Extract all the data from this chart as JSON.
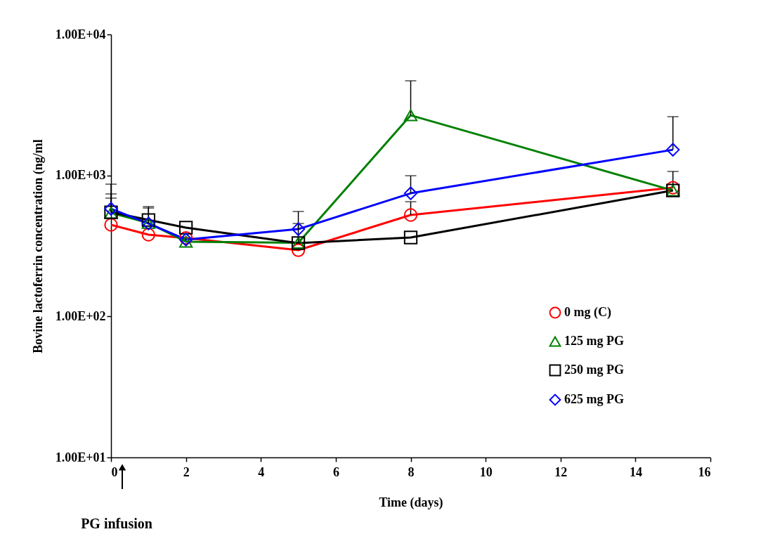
{
  "chart_data": {
    "type": "line",
    "xlabel": "Time (days)",
    "ylabel": "Bovine lactoferrin concentration (ng/ml",
    "x": [
      0,
      1,
      2,
      5,
      8,
      15
    ],
    "series": [
      {
        "name": "0 mg (C)",
        "color": "#ff0000",
        "marker": "circle",
        "values": [
          446,
          380,
          360,
          295,
          524,
          819
        ],
        "errors": [
          null,
          null,
          null,
          null,
          [
            524,
            651
          ],
          [
            819,
            1067
          ]
        ]
      },
      {
        "name": "125 mg PG",
        "color": "#008000",
        "marker": "triangle",
        "values": [
          542,
          460,
          339,
          333,
          2670,
          782
        ],
        "errors": [
          [
            542,
            690
          ],
          null,
          null,
          [
            333,
            456
          ],
          [
            2670,
            4690
          ],
          null
        ]
      },
      {
        "name": "250 mg PG",
        "color": "#000000",
        "marker": "square",
        "values": [
          548,
          483,
          426,
          331,
          363,
          782
        ],
        "errors": [
          [
            548,
            867
          ],
          [
            483,
            601
          ],
          null,
          null,
          null,
          null
        ]
      },
      {
        "name": "625 mg PG",
        "color": "#0000ff",
        "marker": "diamond",
        "values": [
          580,
          456,
          351,
          416,
          747,
          1521
        ],
        "errors": [
          [
            580,
            739
          ],
          [
            456,
            587
          ],
          null,
          [
            416,
            555
          ],
          [
            747,
            995
          ],
          [
            1521,
            2610
          ]
        ]
      }
    ],
    "xlim": [
      0,
      16
    ],
    "xticks": [
      0,
      2,
      4,
      6,
      8,
      10,
      12,
      14,
      16
    ],
    "ylim": [
      10,
      10000
    ],
    "yticks": [
      {
        "value": 10,
        "label": "1.00E+01"
      },
      {
        "value": 100,
        "label": "1.00E+02"
      },
      {
        "value": 1000,
        "label": "1.00E+03"
      },
      {
        "value": 10000,
        "label": "1.00E+04"
      }
    ],
    "log": "y",
    "grid": false,
    "legend": "bottom right",
    "line_style": "solid",
    "annotations": [
      "PG infusion"
    ]
  }
}
